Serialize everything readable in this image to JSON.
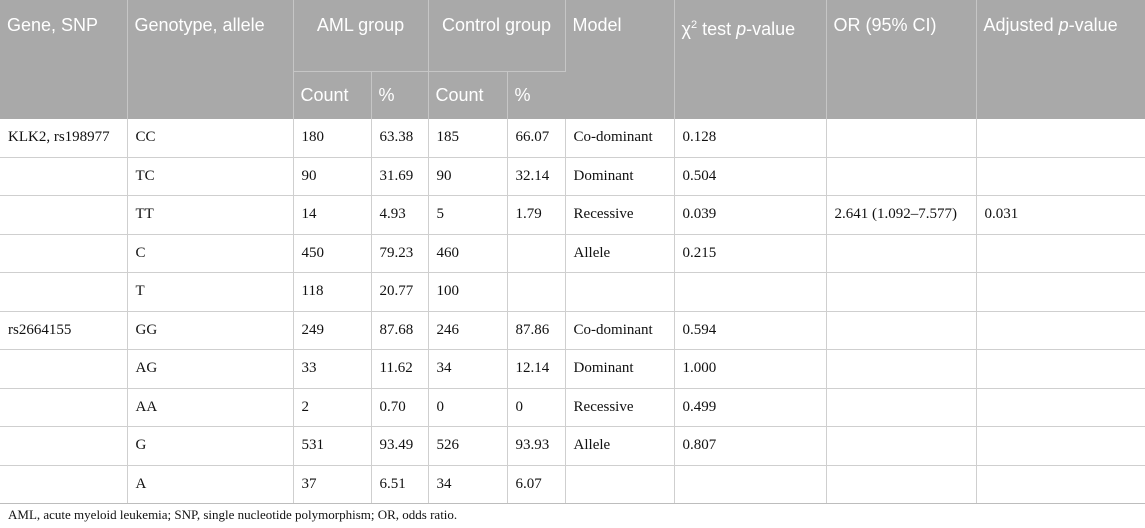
{
  "headers": {
    "gene_snp": "Gene, SNP",
    "genotype_allele": "Genotype, allele",
    "aml_group": "AML group",
    "control_group": "Control group",
    "model": "Model",
    "chi_square": {
      "chi": "χ",
      "sup": "2",
      "rest": " test ",
      "p": "p",
      "suffix": "-value"
    },
    "or_ci": "OR (95% CI)",
    "adjusted": {
      "prefix": "Adjusted ",
      "p": "p",
      "suffix": "-value"
    },
    "count": "Count",
    "percent": "%"
  },
  "rows": [
    {
      "gene": "KLK2, rs198977",
      "genotype": "CC",
      "aml_count": "180",
      "aml_pct": "63.38",
      "ctrl_count": "185",
      "ctrl_pct": "66.07",
      "model": "Co-dominant",
      "chi_p": "0.128",
      "or": "",
      "adj_p": ""
    },
    {
      "gene": "",
      "genotype": "TC",
      "aml_count": "90",
      "aml_pct": "31.69",
      "ctrl_count": "90",
      "ctrl_pct": "32.14",
      "model": "Dominant",
      "chi_p": "0.504",
      "or": "",
      "adj_p": ""
    },
    {
      "gene": "",
      "genotype": "TT",
      "aml_count": "14",
      "aml_pct": "4.93",
      "ctrl_count": "5",
      "ctrl_pct": "1.79",
      "model": "Recessive",
      "chi_p": "0.039",
      "or": "2.641 (1.092–7.577)",
      "adj_p": "0.031"
    },
    {
      "gene": "",
      "genotype": "C",
      "aml_count": "450",
      "aml_pct": "79.23",
      "ctrl_count": "460",
      "ctrl_pct": "",
      "model": "Allele",
      "chi_p": "0.215",
      "or": "",
      "adj_p": ""
    },
    {
      "gene": "",
      "genotype": "T",
      "aml_count": "118",
      "aml_pct": "20.77",
      "ctrl_count": "100",
      "ctrl_pct": "",
      "model": "",
      "chi_p": "",
      "or": "",
      "adj_p": ""
    },
    {
      "gene": "rs2664155",
      "genotype": "GG",
      "aml_count": "249",
      "aml_pct": "87.68",
      "ctrl_count": "246",
      "ctrl_pct": "87.86",
      "model": "Co-dominant",
      "chi_p": "0.594",
      "or": "",
      "adj_p": ""
    },
    {
      "gene": "",
      "genotype": "AG",
      "aml_count": "33",
      "aml_pct": "11.62",
      "ctrl_count": "34",
      "ctrl_pct": "12.14",
      "model": "Dominant",
      "chi_p": "1.000",
      "or": "",
      "adj_p": ""
    },
    {
      "gene": "",
      "genotype": "AA",
      "aml_count": "2",
      "aml_pct": "0.70",
      "ctrl_count": "0",
      "ctrl_pct": "0",
      "model": "Recessive",
      "chi_p": "0.499",
      "or": "",
      "adj_p": ""
    },
    {
      "gene": "",
      "genotype": "G",
      "aml_count": "531",
      "aml_pct": "93.49",
      "ctrl_count": "526",
      "ctrl_pct": "93.93",
      "model": "Allele",
      "chi_p": "0.807",
      "or": "",
      "adj_p": ""
    },
    {
      "gene": "",
      "genotype": "A",
      "aml_count": "37",
      "aml_pct": "6.51",
      "ctrl_count": "34",
      "ctrl_pct": "6.07",
      "model": "",
      "chi_p": "",
      "or": "",
      "adj_p": ""
    }
  ],
  "footnote": "AML, acute myeloid leukemia; SNP, single nucleotide polymorphism; OR, odds ratio.",
  "colors": {
    "header_bg": "#a9a9a9",
    "header_text": "#ffffff"
  }
}
